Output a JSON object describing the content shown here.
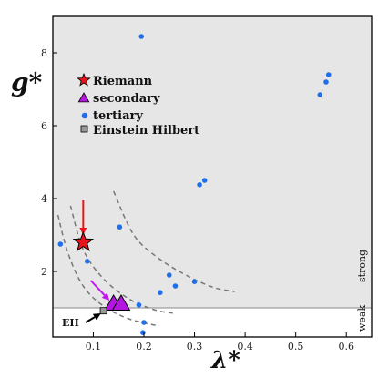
{
  "chart_data": {
    "type": "scatter",
    "xlabel": "λ*",
    "ylabel": "g*",
    "xlim": [
      0.02,
      0.65
    ],
    "ylim": [
      0.2,
      9.0
    ],
    "xticks": [
      0.1,
      0.2,
      0.3,
      0.4,
      0.5,
      0.6
    ],
    "xtick_labels": [
      "0.1",
      "0.2",
      "0.3",
      "0.4",
      "0.5",
      "0.6"
    ],
    "yticks": [
      2,
      4,
      6,
      8
    ],
    "ytick_labels": [
      "2",
      "4",
      "6",
      "8"
    ],
    "grid": false,
    "legend_position": "upper-left",
    "colors": {
      "strong_region": "#e6e6e6",
      "weak_region": "#ffffff",
      "riemann": "#e8141b",
      "secondary": "#b316e0",
      "tertiary": "#1f6fe8",
      "einstein_hilbert": "#999999",
      "dashed_curves": "#777777",
      "arrow_riemann": "#e8141b",
      "arrow_secondary": "#c218f0",
      "arrow_eh": "#000000"
    },
    "regions": {
      "boundary_g": 1.0,
      "strong_label": "strong",
      "weak_label": "weak"
    },
    "series": [
      {
        "name": "Riemann",
        "marker": "star",
        "points": [
          [
            0.08,
            2.8
          ]
        ]
      },
      {
        "name": "secondary",
        "marker": "triangle",
        "points": [
          [
            0.14,
            1.1
          ],
          [
            0.155,
            1.1
          ]
        ]
      },
      {
        "name": "tertiary",
        "marker": "circle",
        "points": [
          [
            0.195,
            8.45
          ],
          [
            0.565,
            7.4
          ],
          [
            0.56,
            7.2
          ],
          [
            0.548,
            6.85
          ],
          [
            0.32,
            4.5
          ],
          [
            0.31,
            4.38
          ],
          [
            0.152,
            3.22
          ],
          [
            0.035,
            2.75
          ],
          [
            0.088,
            2.28
          ],
          [
            0.25,
            1.9
          ],
          [
            0.262,
            1.6
          ],
          [
            0.3,
            1.72
          ],
          [
            0.232,
            1.42
          ],
          [
            0.19,
            1.08
          ],
          [
            0.2,
            0.6
          ],
          [
            0.198,
            0.32
          ]
        ]
      },
      {
        "name": "Einstein Hilbert",
        "marker": "square",
        "points": [
          [
            0.12,
            0.92
          ]
        ]
      }
    ],
    "curves": [
      {
        "points": [
          [
            0.14,
            4.2
          ],
          [
            0.18,
            3.0
          ],
          [
            0.23,
            2.35
          ],
          [
            0.29,
            1.85
          ],
          [
            0.34,
            1.55
          ],
          [
            0.38,
            1.45
          ]
        ]
      },
      {
        "points": [
          [
            0.055,
            3.8
          ],
          [
            0.08,
            2.6
          ],
          [
            0.12,
            1.8
          ],
          [
            0.17,
            1.25
          ],
          [
            0.22,
            0.95
          ],
          [
            0.26,
            0.85
          ]
        ]
      },
      {
        "points": [
          [
            0.03,
            3.55
          ],
          [
            0.05,
            2.5
          ],
          [
            0.08,
            1.6
          ],
          [
            0.12,
            1.05
          ],
          [
            0.17,
            0.7
          ],
          [
            0.23,
            0.5
          ]
        ]
      }
    ],
    "arrows": [
      {
        "from": [
          0.08,
          3.95
        ],
        "to": [
          0.08,
          3.0
        ],
        "color_key": "arrow_riemann"
      },
      {
        "from": [
          0.095,
          1.75
        ],
        "to": [
          0.132,
          1.2
        ],
        "color_key": "arrow_secondary"
      },
      {
        "from": [
          0.085,
          0.6
        ],
        "to": [
          0.115,
          0.85
        ],
        "color_key": "arrow_eh"
      }
    ],
    "annotations": [
      {
        "text": "EH",
        "x": 0.05,
        "y": 0.5
      }
    ]
  }
}
